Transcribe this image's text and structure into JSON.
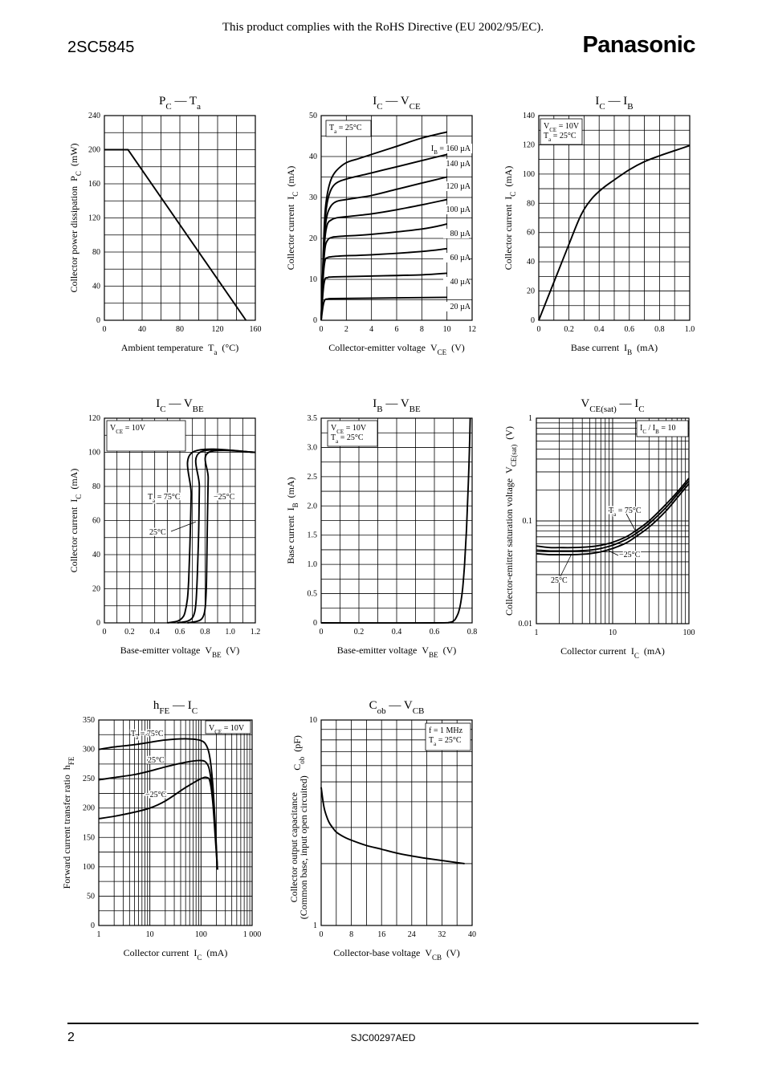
{
  "header": {
    "note": "This product complies with the RoHS Directive (EU 2002/95/EC).",
    "part_number": "2SC5845",
    "brand": "Panasonic"
  },
  "footer": {
    "page": "2",
    "code": "SJC00297AED"
  },
  "chart_data": [
    {
      "id": "pc-ta",
      "type": "line",
      "title": "P_C — T_a",
      "xlabel": "Ambient temperature  T_a  (°C)",
      "ylabel": "Collector power dissipation  P_C  (mW)",
      "xlim": [
        0,
        160
      ],
      "ylim": [
        0,
        240
      ],
      "xticks": [
        0,
        40,
        80,
        120,
        160
      ],
      "yticks": [
        0,
        40,
        80,
        120,
        160,
        200,
        240
      ],
      "xgrid": [
        0,
        20,
        40,
        60,
        80,
        100,
        120,
        140,
        160
      ],
      "ygrid": [
        0,
        20,
        40,
        60,
        80,
        100,
        120,
        140,
        160,
        180,
        200,
        220,
        240
      ],
      "series": [
        {
          "x": [
            0,
            25,
            150
          ],
          "y": [
            200,
            200,
            0
          ]
        }
      ]
    },
    {
      "id": "ic-vce",
      "type": "line",
      "title": "I_C — V_CE",
      "xlabel": "Collector-emitter voltage  V_CE  (V)",
      "ylabel": "Collector current  I_C  (mA)",
      "xlim": [
        0,
        12
      ],
      "ylim": [
        0,
        50
      ],
      "xticks": [
        0,
        2,
        4,
        6,
        8,
        10,
        12
      ],
      "yticks": [
        0,
        10,
        20,
        30,
        40,
        50
      ],
      "xgrid": [
        0,
        2,
        4,
        6,
        8,
        10,
        12
      ],
      "ygrid": [
        0,
        5,
        10,
        15,
        20,
        25,
        30,
        35,
        40,
        45,
        50
      ],
      "condition": "T_a = 25°C",
      "series": [
        {
          "name": "I_B = 160 μA",
          "x": [
            0,
            0.15,
            0.3,
            0.5,
            0.8,
            1.2,
            2,
            3,
            4,
            6,
            8,
            10
          ],
          "y": [
            0,
            15,
            26,
            31,
            34.5,
            36.5,
            38.5,
            39.5,
            40.5,
            42.5,
            44.5,
            46
          ]
        },
        {
          "name": "140 μA",
          "x": [
            0,
            0.15,
            0.3,
            0.5,
            0.8,
            1.2,
            2,
            4,
            6,
            8,
            10
          ],
          "y": [
            0,
            14,
            24,
            29,
            32,
            33.5,
            34.5,
            36,
            37.5,
            39,
            40.5
          ]
        },
        {
          "name": "120 μA",
          "x": [
            0,
            0.15,
            0.3,
            0.5,
            0.8,
            1.2,
            2,
            4,
            6,
            8,
            10
          ],
          "y": [
            0,
            13,
            22,
            26,
            28,
            29,
            29.5,
            30.5,
            32,
            33.5,
            35
          ]
        },
        {
          "name": "100 μA",
          "x": [
            0,
            0.15,
            0.3,
            0.5,
            0.8,
            1.2,
            2,
            4,
            6,
            8,
            10
          ],
          "y": [
            0,
            12,
            20,
            23.5,
            24.5,
            25,
            25.3,
            26,
            27,
            28.2,
            29.5
          ]
        },
        {
          "name": "80 μA",
          "x": [
            0,
            0.15,
            0.3,
            0.5,
            0.8,
            1.5,
            4,
            8,
            10
          ],
          "y": [
            0,
            11,
            17.5,
            19.5,
            20.2,
            20.5,
            21,
            22.3,
            23.5
          ]
        },
        {
          "name": "60 μA",
          "x": [
            0,
            0.15,
            0.3,
            0.5,
            0.8,
            1.5,
            4,
            8,
            10
          ],
          "y": [
            0,
            10,
            14.5,
            15.3,
            15.5,
            15.7,
            16,
            16.8,
            17.5
          ]
        },
        {
          "name": "40 μA",
          "x": [
            0,
            0.15,
            0.3,
            0.5,
            1,
            4,
            8,
            10
          ],
          "y": [
            0,
            7,
            10,
            10.4,
            10.6,
            10.8,
            11.1,
            11.5
          ]
        },
        {
          "name": "20 μA",
          "x": [
            0,
            0.15,
            0.3,
            0.5,
            1,
            4,
            10
          ],
          "y": [
            0,
            3.5,
            5,
            5.2,
            5.3,
            5.4,
            5.6
          ]
        }
      ]
    },
    {
      "id": "ic-ib",
      "type": "line",
      "title": "I_C — I_B",
      "xlabel": "Base current  I_B  (mA)",
      "ylabel": "Collector current  I_C  (mA)",
      "xlim": [
        0,
        1.0
      ],
      "ylim": [
        0,
        140
      ],
      "xticks": [
        "0",
        "0.2",
        "0.4",
        "0.6",
        "0.8",
        "1.0"
      ],
      "yticks": [
        0,
        20,
        40,
        60,
        80,
        100,
        120,
        140
      ],
      "xgrid": [
        0,
        0.1,
        0.2,
        0.3,
        0.4,
        0.5,
        0.6,
        0.7,
        0.8,
        0.9,
        1.0
      ],
      "ygrid": [
        0,
        10,
        20,
        30,
        40,
        50,
        60,
        70,
        80,
        90,
        100,
        110,
        120,
        130,
        140
      ],
      "condition": [
        "V_CE = 10V",
        "T_a = 25°C"
      ],
      "series": [
        {
          "x": [
            0,
            0.1,
            0.2,
            0.28,
            0.35,
            0.42,
            0.5,
            0.6,
            0.7,
            0.8,
            0.9,
            1.0
          ],
          "y": [
            0,
            26,
            52,
            72,
            83,
            90,
            96,
            103,
            108.5,
            112.5,
            116,
            119.5
          ]
        }
      ]
    },
    {
      "id": "ic-vbe",
      "type": "line",
      "title": "I_C — V_BE",
      "xlabel": "Base-emitter voltage  V_BE  (V)",
      "ylabel": "Collector current  I_C  (mA)",
      "xlim": [
        0,
        1.2
      ],
      "ylim": [
        0,
        120
      ],
      "xticks": [
        "0",
        "0.2",
        "0.4",
        "0.6",
        "0.8",
        "1.0",
        "1.2"
      ],
      "yticks": [
        0,
        20,
        40,
        60,
        80,
        100,
        120
      ],
      "xgrid": [
        0,
        0.1,
        0.2,
        0.3,
        0.4,
        0.5,
        0.6,
        0.7,
        0.8,
        0.9,
        1.0,
        1.1,
        1.2
      ],
      "ygrid": [
        0,
        10,
        20,
        30,
        40,
        50,
        60,
        70,
        80,
        90,
        100,
        110,
        120
      ],
      "condition": "V_CE = 10V",
      "annotations": [
        "T_a = 75°C",
        "25°C",
        "−25°C"
      ],
      "series": [
        {
          "name": "T_a = 75°C",
          "x": [
            0.5,
            0.58,
            0.62,
            0.64,
            0.66,
            0.67,
            0.68,
            0.69,
            0.7,
            1.2
          ],
          "y": [
            0,
            1,
            3,
            6,
            14,
            25,
            45,
            75,
            100,
            100
          ]
        },
        {
          "name": "25°C",
          "x": [
            0.58,
            0.66,
            0.7,
            0.72,
            0.73,
            0.74,
            0.75,
            0.755,
            0.76,
            1.2
          ],
          "y": [
            0,
            1,
            3,
            7,
            14,
            30,
            55,
            80,
            100,
            100
          ]
        },
        {
          "name": "−25°C",
          "x": [
            0.66,
            0.74,
            0.78,
            0.8,
            0.81,
            0.815,
            0.82,
            0.825,
            0.83,
            1.2
          ],
          "y": [
            0,
            1,
            3,
            8,
            20,
            40,
            65,
            85,
            100,
            100
          ]
        }
      ]
    },
    {
      "id": "ib-vbe",
      "type": "line",
      "title": "I_B — V_BE",
      "xlabel": "Base-emitter voltage  V_BE  (V)",
      "ylabel": "Base current  I_B  (mA)",
      "xlim": [
        0,
        0.8
      ],
      "ylim": [
        0,
        3.5
      ],
      "xticks": [
        "0",
        "0.2",
        "0.4",
        "0.6",
        "0.8"
      ],
      "yticks": [
        "0",
        "0.5",
        "1.0",
        "1.5",
        "2.0",
        "2.5",
        "3.0",
        "3.5"
      ],
      "xgrid": [
        0,
        0.1,
        0.2,
        0.3,
        0.4,
        0.5,
        0.6,
        0.7,
        0.8
      ],
      "ygrid": [
        0,
        0.25,
        0.5,
        0.75,
        1.0,
        1.25,
        1.5,
        1.75,
        2.0,
        2.25,
        2.5,
        2.75,
        3.0,
        3.25,
        3.5
      ],
      "condition": [
        "V_CE = 10V",
        "T_a = 25°C"
      ],
      "series": [
        {
          "x": [
            0,
            0.6,
            0.68,
            0.7,
            0.71,
            0.72,
            0.73,
            0.74,
            0.75,
            0.76,
            0.77,
            0.78,
            0.785,
            0.79
          ],
          "y": [
            0,
            0,
            0.01,
            0.03,
            0.06,
            0.12,
            0.2,
            0.35,
            0.6,
            1.0,
            1.6,
            2.4,
            2.9,
            3.5
          ]
        }
      ]
    },
    {
      "id": "vcesat-ic",
      "type": "line",
      "title": "V_CE(sat) — I_C",
      "xlabel": "Collector current  I_C  (mA)",
      "ylabel": "Collector-emitter saturation voltage  V_CE(sat)  (V)",
      "xscale": "log",
      "yscale": "log",
      "xlim": [
        1,
        100
      ],
      "ylim": [
        0.01,
        1
      ],
      "xticks": [
        "1",
        "10",
        "100"
      ],
      "yticks": [
        "0.01",
        "0.1",
        "1"
      ],
      "condition": "I_C / I_B = 10",
      "annotations": [
        "T_a = 75°C",
        "−25°C",
        "25°C"
      ],
      "series": [
        {
          "name": "T_a = 75°C",
          "x": [
            1,
            1.5,
            2,
            3,
            5,
            7,
            10,
            15,
            20,
            30,
            50,
            70,
            100
          ],
          "y": [
            0.057,
            0.055,
            0.055,
            0.055,
            0.056,
            0.058,
            0.062,
            0.07,
            0.08,
            0.1,
            0.145,
            0.19,
            0.26
          ]
        },
        {
          "name": "25°C",
          "x": [
            1,
            1.5,
            2,
            3,
            5,
            7,
            10,
            15,
            20,
            30,
            50,
            70,
            100
          ],
          "y": [
            0.052,
            0.051,
            0.051,
            0.051,
            0.052,
            0.054,
            0.058,
            0.066,
            0.075,
            0.094,
            0.135,
            0.18,
            0.245
          ]
        },
        {
          "name": "−25°C",
          "x": [
            1,
            1.5,
            2,
            3,
            5,
            7,
            10,
            15,
            20,
            30,
            50,
            70,
            100
          ],
          "y": [
            0.048,
            0.047,
            0.047,
            0.047,
            0.048,
            0.05,
            0.054,
            0.061,
            0.07,
            0.087,
            0.125,
            0.168,
            0.23
          ]
        }
      ]
    },
    {
      "id": "hfe-ic",
      "type": "line",
      "title": "h_FE — I_C",
      "xlabel": "Collector current  I_C  (mA)",
      "ylabel": "Forward current transfer ratio  h_FE",
      "xscale": "log",
      "xlim": [
        1,
        1000
      ],
      "ylim": [
        0,
        350
      ],
      "xticks": [
        "1",
        "10",
        "100",
        "1 000"
      ],
      "yticks": [
        0,
        50,
        100,
        150,
        200,
        250,
        300,
        350
      ],
      "ygrid": [
        0,
        25,
        50,
        75,
        100,
        125,
        150,
        175,
        200,
        225,
        250,
        275,
        300,
        325,
        350
      ],
      "condition": "V_CE = 10V",
      "annotations": [
        "T_a = 75°C",
        "25°C",
        "−25°C"
      ],
      "series": [
        {
          "name": "T_a = 75°C",
          "x": [
            1,
            2,
            5,
            10,
            20,
            50,
            100,
            130,
            150,
            170,
            190,
            210
          ],
          "y": [
            300,
            304,
            308,
            312,
            316,
            318,
            315,
            305,
            285,
            240,
            170,
            95
          ]
        },
        {
          "name": "25°C",
          "x": [
            1,
            2,
            5,
            10,
            20,
            50,
            100,
            130,
            150,
            170,
            190,
            210
          ],
          "y": [
            248,
            252,
            257,
            263,
            270,
            278,
            281,
            276,
            260,
            220,
            160,
            95
          ]
        },
        {
          "name": "−25°C",
          "x": [
            1,
            2,
            5,
            10,
            20,
            50,
            100,
            130,
            150,
            170,
            190,
            210
          ],
          "y": [
            182,
            186,
            193,
            200,
            212,
            235,
            250,
            252,
            245,
            210,
            150,
            95
          ]
        }
      ]
    },
    {
      "id": "cob-vcb",
      "type": "line",
      "title": "C_ob — V_CB",
      "xlabel": "Collector-base voltage  V_CB  (V)",
      "ylabel": [
        "Collector output capacitance",
        "(Common base, input open circuited)",
        "C_ob  (pF)"
      ],
      "yscale": "log",
      "xlim": [
        0,
        40
      ],
      "ylim": [
        1,
        10
      ],
      "xticks": [
        "0",
        "8",
        "16",
        "24",
        "32",
        "40"
      ],
      "yticks": [
        "1",
        "10"
      ],
      "xgrid": [
        0,
        4,
        8,
        12,
        16,
        20,
        24,
        28,
        32,
        36,
        40
      ],
      "condition": [
        "f = 1 MHz",
        "T_a = 25°C"
      ],
      "series": [
        {
          "x": [
            0,
            0.5,
            1,
            2,
            3,
            4,
            6,
            8,
            12,
            16,
            20,
            24,
            28,
            32,
            38
          ],
          "y": [
            4.7,
            4.0,
            3.6,
            3.2,
            3.0,
            2.85,
            2.7,
            2.6,
            2.45,
            2.35,
            2.25,
            2.18,
            2.12,
            2.07,
            2.0
          ]
        }
      ]
    }
  ]
}
